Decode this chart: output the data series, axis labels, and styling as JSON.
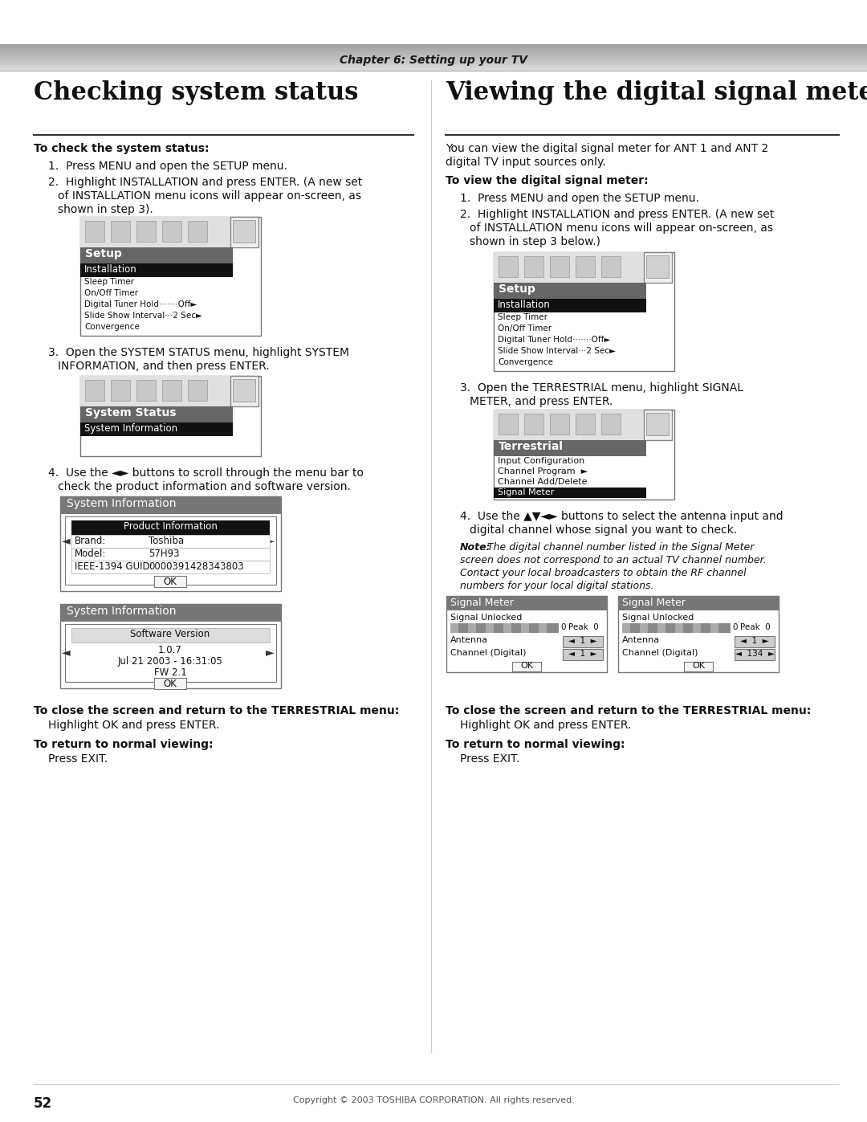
{
  "page_bg": "#ffffff",
  "header_text": "Chapter 6: Setting up your TV",
  "footer_text": "Copyright © 2003 TOSHIBA CORPORATION. All rights reserved.",
  "footer_page": "52",
  "left_title": "Checking system status",
  "right_title": "Viewing the digital signal meter",
  "setup_menu_items": [
    "Sleep Timer",
    "On/Off Timer",
    "Digital Tuner Hold·······Off►",
    "Slide Show Interval···2 Sec►",
    "Convergence"
  ],
  "terrestrial_menu_items": [
    "Input Configuration",
    "Channel Program  ►",
    "Channel Add/Delete",
    "Signal Meter"
  ],
  "ieee_guid": "0000391428343803",
  "sw_version": "1.0.7",
  "sw_date": "Jul 21 2003 - 16:31:05",
  "sw_fw": "FW 2.1"
}
